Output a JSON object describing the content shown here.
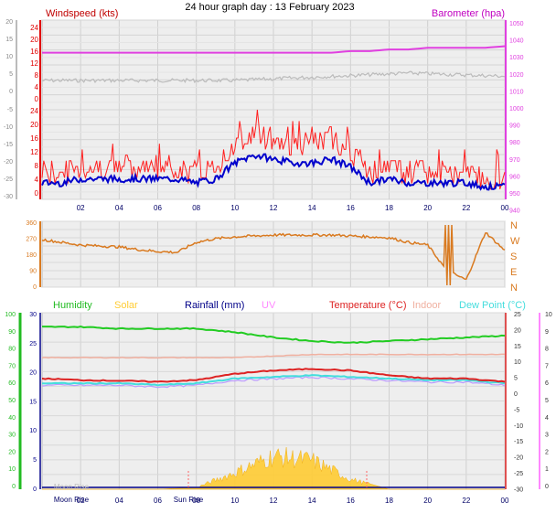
{
  "title": "24 hour graph day : 13 February 2023",
  "colors": {
    "wind": "#e00000",
    "gust_fill": "#ff2020",
    "avg": "#0000cc",
    "baro": "#e040e0",
    "grey": "#bbbbbb",
    "dir": "#d97a20",
    "humidity": "#22cc22",
    "solar": "#ffcc33",
    "rain": "#000088",
    "uv": "#ff88ff",
    "temp": "#dd2222",
    "indoor": "#f0b0a0",
    "dew": "#44dddd",
    "purple": "#bb99ff",
    "green": "#22bb22"
  },
  "x_ticks": [
    "02",
    "04",
    "06",
    "08",
    "10",
    "12",
    "14",
    "16",
    "18",
    "20",
    "22",
    "00"
  ],
  "panel1": {
    "left_label": "Windspeed (kts)",
    "right_label": "Barometer (hpa)",
    "left_ticks_top": [
      "24",
      "20",
      "16",
      "12",
      "8",
      "4",
      "0"
    ],
    "left_ticks_upper_grey": [
      "20",
      "15",
      "10",
      "5",
      "0"
    ],
    "left_ticks_neg": [
      "-5",
      "-10",
      "-15",
      "-20",
      "-25",
      "-30"
    ],
    "left_ticks_red": [
      "24",
      "20",
      "16",
      "12",
      "8",
      "4",
      "0"
    ],
    "right_ticks": [
      "1050",
      "1040",
      "1030",
      "1020",
      "1010",
      "1000",
      "990",
      "980",
      "970",
      "960",
      "950",
      "940"
    ]
  },
  "panel2": {
    "left_ticks": [
      "360",
      "270",
      "180",
      "90",
      "0"
    ],
    "right_labels": [
      "N",
      "W",
      "S",
      "E",
      "N"
    ]
  },
  "panel3": {
    "legend": [
      "Humidity",
      "Solar",
      "Rainfall (mm)",
      "UV",
      "Temperature (°C)",
      "Indoor",
      "Dew Point (°C)"
    ],
    "hum_ticks": [
      "100",
      "90",
      "80",
      "70",
      "60",
      "50",
      "40",
      "30",
      "20",
      "10",
      "0"
    ],
    "rain_ticks": [
      "30",
      "25",
      "20",
      "15",
      "10",
      "5",
      "0"
    ],
    "temp_ticks": [
      "25",
      "20",
      "15",
      "10",
      "5",
      "0",
      "-5",
      "-10",
      "-15",
      "-20",
      "-25",
      "-30"
    ],
    "uv_ticks": [
      "10",
      "9",
      "8",
      "7",
      "6",
      "5",
      "4",
      "3",
      "2",
      "1",
      "0"
    ],
    "moon_rise": "Moon Rise",
    "moon_set": "Moon Rise",
    "sun_rise": "Sun Rise",
    "sun_set": ""
  },
  "chart_data": [
    {
      "type": "line",
      "title": "Windspeed (kts)",
      "x_hours": [
        0,
        1,
        2,
        3,
        4,
        5,
        6,
        7,
        8,
        9,
        10,
        11,
        12,
        13,
        14,
        15,
        16,
        17,
        18,
        19,
        20,
        21,
        22,
        23,
        24
      ],
      "series": [
        {
          "name": "Windspeed (kts)",
          "values": [
            3,
            3,
            4,
            4,
            4,
            4,
            4,
            4,
            3,
            4,
            8,
            10,
            9,
            8,
            8,
            9,
            7,
            3,
            4,
            3,
            3,
            3,
            3,
            2,
            2
          ]
        },
        {
          "name": "Barometer (hpa)",
          "values": [
            1030,
            1030,
            1030,
            1030,
            1030,
            1030,
            1030,
            1030,
            1030,
            1030,
            1030,
            1030,
            1030,
            1030,
            1030,
            1030,
            1031,
            1031,
            1032,
            1032,
            1033,
            1033,
            1033,
            1033,
            1034
          ]
        }
      ],
      "ylim_wind": [
        0,
        24
      ],
      "ylim_baro": [
        940,
        1050
      ]
    },
    {
      "type": "line",
      "title": "Wind direction",
      "x_hours": [
        0,
        1,
        2,
        3,
        4,
        5,
        6,
        7,
        8,
        9,
        10,
        11,
        12,
        13,
        14,
        15,
        16,
        17,
        18,
        19,
        20,
        21,
        22,
        23,
        24
      ],
      "values": [
        260,
        245,
        230,
        225,
        220,
        205,
        195,
        190,
        245,
        265,
        275,
        280,
        285,
        285,
        285,
        285,
        280,
        275,
        270,
        245,
        230,
        90,
        40,
        300,
        200
      ],
      "ylim": [
        0,
        360
      ]
    },
    {
      "type": "line",
      "title": "Humidity / Temperature / Dew Point",
      "x_hours": [
        0,
        2,
        4,
        6,
        8,
        10,
        12,
        14,
        16,
        18,
        20,
        22,
        24
      ],
      "series": [
        {
          "name": "Humidity",
          "values": [
            92,
            92,
            91,
            91,
            91,
            89,
            86,
            84,
            83,
            84,
            85,
            86,
            87
          ]
        },
        {
          "name": "Temperature (°C)",
          "values": [
            4.5,
            4.0,
            3.8,
            3.5,
            4.0,
            6.0,
            7.0,
            7.5,
            7.0,
            5.5,
            4.5,
            4.5,
            3.5
          ]
        },
        {
          "name": "Dew Point (°C)",
          "values": [
            3.0,
            3.0,
            3.0,
            2.5,
            3.0,
            4.5,
            5.0,
            5.5,
            5.0,
            4.5,
            4.0,
            4.0,
            3.0
          ]
        },
        {
          "name": "Indoor",
          "values": [
            11,
            11,
            11,
            11,
            11,
            11,
            11.5,
            12,
            12,
            12,
            12,
            12,
            12
          ]
        },
        {
          "name": "Solar",
          "values": [
            0,
            0,
            0,
            0,
            2,
            20,
            40,
            35,
            12,
            0,
            0,
            0,
            0
          ]
        }
      ],
      "ylim_humidity": [
        0,
        100
      ],
      "ylim_temp": [
        -30,
        25
      ]
    }
  ]
}
